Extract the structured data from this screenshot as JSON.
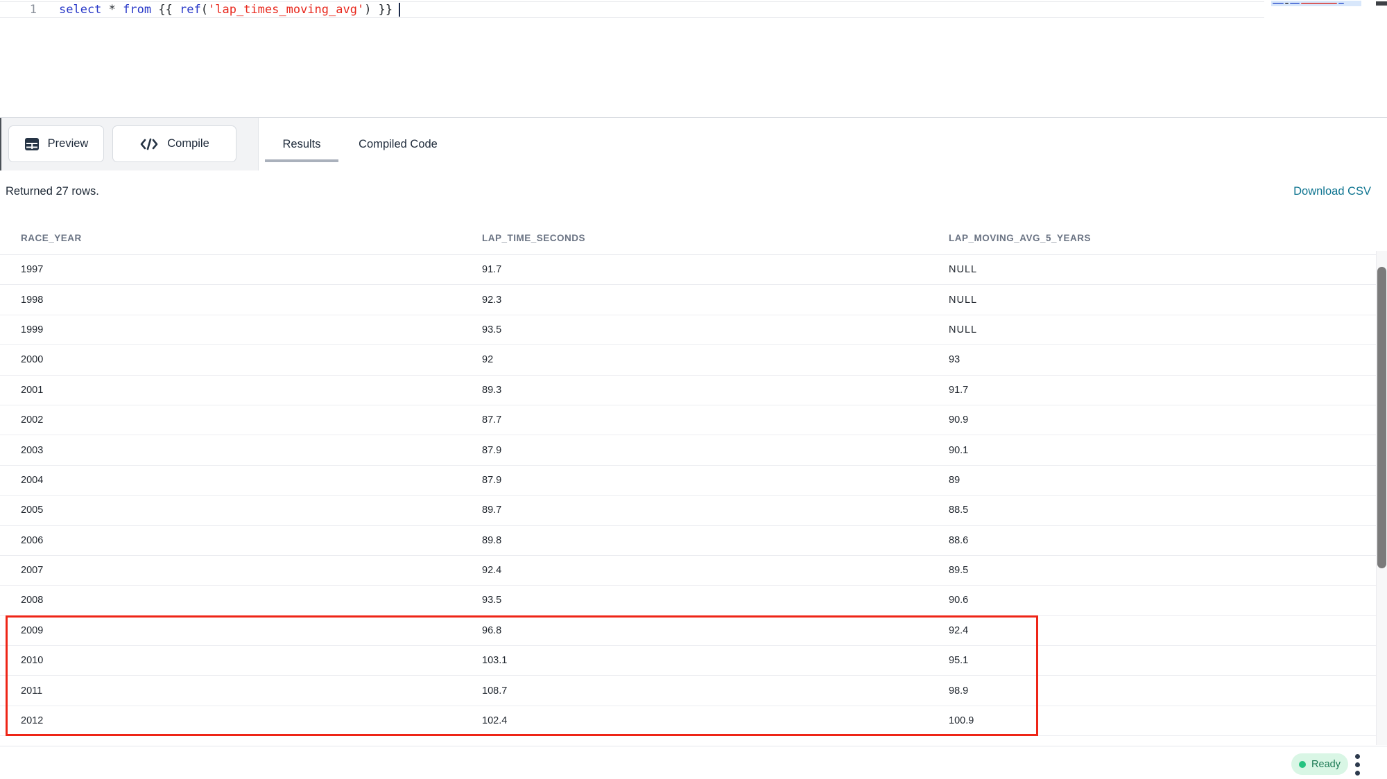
{
  "editor": {
    "line_number": "1",
    "tokens": {
      "kw_select": "select",
      "op_star": " * ",
      "kw_from": "from",
      "p_open": " {{ ",
      "fn_ref": "ref",
      "p_paren_open": "(",
      "str_model": "'lap_times_moving_avg'",
      "p_close": ") }}"
    }
  },
  "toolbar": {
    "preview_label": "Preview",
    "compile_label": "Compile",
    "tabs": {
      "results": "Results",
      "compiled_code": "Compiled Code"
    },
    "active_tab": "Results"
  },
  "results_meta": {
    "returned_text": "Returned 27 rows.",
    "download_csv_label": "Download CSV"
  },
  "results": {
    "columns": [
      "RACE_YEAR",
      "LAP_TIME_SECONDS",
      "LAP_MOVING_AVG_5_YEARS"
    ],
    "rows": [
      [
        "1997",
        "91.7",
        "NULL"
      ],
      [
        "1998",
        "92.3",
        "NULL"
      ],
      [
        "1999",
        "93.5",
        "NULL"
      ],
      [
        "2000",
        "92",
        "93"
      ],
      [
        "2001",
        "89.3",
        "91.7"
      ],
      [
        "2002",
        "87.7",
        "90.9"
      ],
      [
        "2003",
        "87.9",
        "90.1"
      ],
      [
        "2004",
        "87.9",
        "89"
      ],
      [
        "2005",
        "89.7",
        "88.5"
      ],
      [
        "2006",
        "89.8",
        "88.6"
      ],
      [
        "2007",
        "92.4",
        "89.5"
      ],
      [
        "2008",
        "93.5",
        "90.6"
      ],
      [
        "2009",
        "96.8",
        "92.4"
      ],
      [
        "2010",
        "103.1",
        "95.1"
      ],
      [
        "2011",
        "108.7",
        "98.9"
      ],
      [
        "2012",
        "102.4",
        "100.9"
      ]
    ],
    "annotation": {
      "type": "red-highlight-box",
      "highlighted_years": [
        "2009",
        "2010",
        "2011",
        "2012"
      ],
      "color": "#ee2517"
    }
  },
  "status_bar": {
    "ready_label": "Ready"
  },
  "colors": {
    "accent_teal": "#0e7490",
    "status_green": "#25c380",
    "keyword_blue": "#2838c8",
    "string_red": "#e8271c",
    "highlight_red": "#ee2517"
  }
}
